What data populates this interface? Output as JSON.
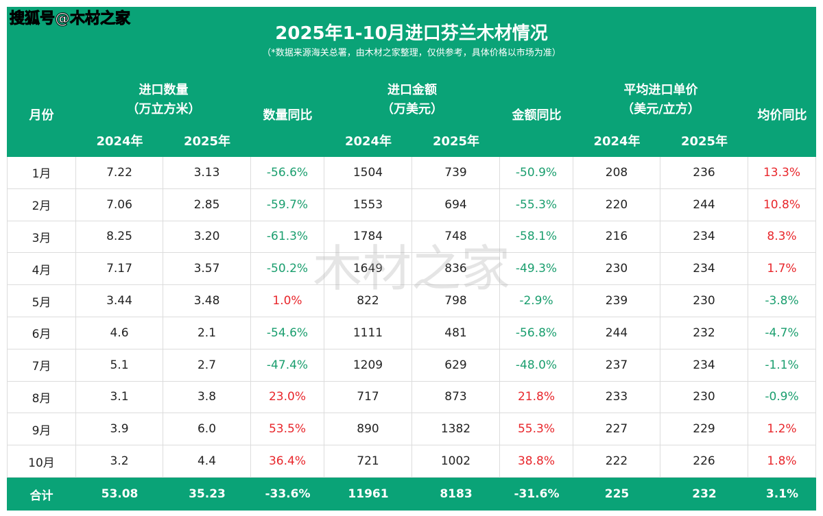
{
  "watermark": "搜狐号@木材之家",
  "title": "2025年1-10月进口芬兰木材情况",
  "subtitle": "（*数据来源海关总署，由木材之家整理，仅供参考，具体价格以市场为准）",
  "center_watermark": "木材之家",
  "header": {
    "month": "月份",
    "groups": [
      {
        "label": "进口数量",
        "unit": "（万立方米）",
        "years": [
          "2024年",
          "2025年"
        ],
        "change": "数量同比"
      },
      {
        "label": "进口金额",
        "unit": "（万美元）",
        "years": [
          "2024年",
          "2025年"
        ],
        "change": "金额同比"
      },
      {
        "label": "平均进口单价",
        "unit": "（美元/立方）",
        "years": [
          "2024年",
          "2025年"
        ],
        "change": "均价同比"
      }
    ]
  },
  "rows": [
    [
      "1月",
      "7.22",
      "3.13",
      "-56.6%",
      "1504",
      "739",
      "-50.9%",
      "208",
      "236",
      "13.3%"
    ],
    [
      "2月",
      "7.06",
      "2.85",
      "-59.7%",
      "1553",
      "694",
      "-55.3%",
      "220",
      "244",
      "10.8%"
    ],
    [
      "3月",
      "8.25",
      "3.20",
      "-61.3%",
      "1784",
      "748",
      "-58.1%",
      "216",
      "234",
      "8.3%"
    ],
    [
      "4月",
      "7.17",
      "3.57",
      "-50.2%",
      "1649",
      "836",
      "-49.3%",
      "230",
      "234",
      "1.7%"
    ],
    [
      "5月",
      "3.44",
      "3.48",
      "1.0%",
      "822",
      "798",
      "-2.9%",
      "239",
      "230",
      "-3.8%"
    ],
    [
      "6月",
      "4.6",
      "2.1",
      "-54.6%",
      "1111",
      "481",
      "-56.8%",
      "244",
      "232",
      "-4.7%"
    ],
    [
      "7月",
      "5.1",
      "2.7",
      "-47.4%",
      "1209",
      "629",
      "-48.0%",
      "237",
      "234",
      "-1.1%"
    ],
    [
      "8月",
      "3.1",
      "3.8",
      "23.0%",
      "717",
      "873",
      "21.8%",
      "233",
      "230",
      "-0.9%"
    ],
    [
      "9月",
      "3.9",
      "6.0",
      "53.5%",
      "890",
      "1382",
      "55.3%",
      "227",
      "229",
      "1.2%"
    ],
    [
      "10月",
      "3.2",
      "4.4",
      "36.4%",
      "721",
      "1002",
      "38.8%",
      "222",
      "226",
      "1.8%"
    ]
  ],
  "total": [
    "合计",
    "53.08",
    "35.23",
    "-33.6%",
    "11961",
    "8183",
    "-31.6%",
    "225",
    "232",
    "3.1%"
  ]
}
